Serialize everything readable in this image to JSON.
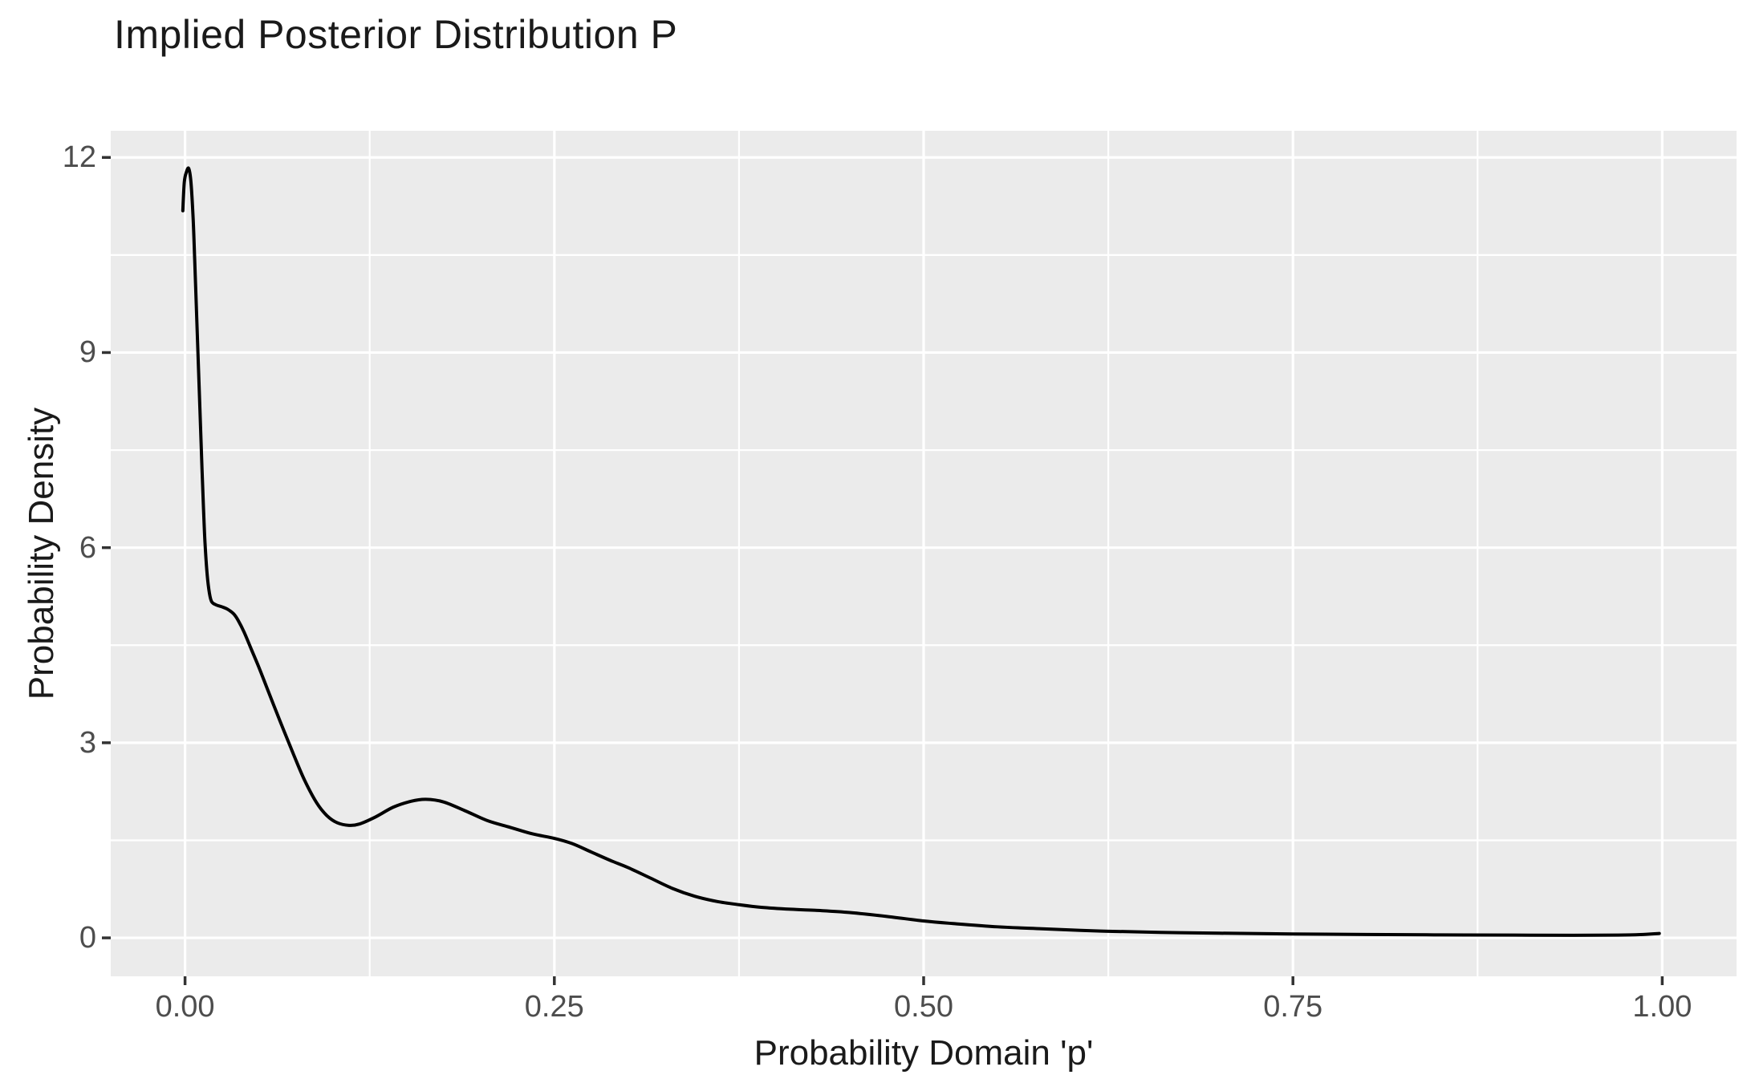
{
  "page": {
    "background": "#FFFFFF"
  },
  "chart_data": {
    "type": "line",
    "subtype": "kernel-density-curve",
    "title": "Implied Posterior Distribution P",
    "xlabel": "Probability Domain 'p'",
    "ylabel": "Probability Density",
    "legend_position": "none",
    "grid": {
      "major": true,
      "minor": true
    },
    "x_range": [
      -0.0503,
      1.0503
    ],
    "y_range": [
      -0.591,
      12.41
    ],
    "x_ticks": {
      "values": [
        0,
        0.25,
        0.5,
        0.75,
        1.0
      ],
      "labels": [
        "0.00",
        "0.25",
        "0.50",
        "0.75",
        "1.00"
      ]
    },
    "y_ticks": {
      "values": [
        0,
        3,
        6,
        9,
        12
      ],
      "labels": [
        "0",
        "3",
        "6",
        "9",
        "12"
      ]
    },
    "x_minor": [
      0.125,
      0.375,
      0.625,
      0.875
    ],
    "y_minor": [
      1.5,
      4.5,
      7.5,
      10.5
    ],
    "style": {
      "panel_bg": "#EBEBEB",
      "grid_color": "#FFFFFF",
      "major_grid_width": 3.2,
      "minor_grid_width": 2.2,
      "line_color": "#000000",
      "line_width": 4,
      "tick_mark_color": "#333333",
      "tick_mark_length": 11,
      "tick_mark_width": 3.5,
      "tick_label_color": "#4d4d4d",
      "text_color": "#1a1a1a"
    },
    "series": [
      {
        "name": "posterior_density",
        "points": [
          [
            -0.0015,
            11.18
          ],
          [
            -0.0005,
            11.62
          ],
          [
            0.001,
            11.78
          ],
          [
            0.0025,
            11.83
          ],
          [
            0.004,
            11.62
          ],
          [
            0.0055,
            11.05
          ],
          [
            0.0065,
            10.45
          ],
          [
            0.0075,
            9.8
          ],
          [
            0.0085,
            9.15
          ],
          [
            0.0095,
            8.5
          ],
          [
            0.0105,
            7.85
          ],
          [
            0.0115,
            7.2
          ],
          [
            0.0125,
            6.6
          ],
          [
            0.0135,
            6.08
          ],
          [
            0.015,
            5.58
          ],
          [
            0.0165,
            5.3
          ],
          [
            0.018,
            5.17
          ],
          [
            0.021,
            5.12
          ],
          [
            0.025,
            5.09
          ],
          [
            0.029,
            5.05
          ],
          [
            0.033,
            4.98
          ],
          [
            0.036,
            4.88
          ],
          [
            0.04,
            4.7
          ],
          [
            0.045,
            4.43
          ],
          [
            0.05,
            4.16
          ],
          [
            0.055,
            3.87
          ],
          [
            0.06,
            3.58
          ],
          [
            0.067,
            3.18
          ],
          [
            0.074,
            2.79
          ],
          [
            0.081,
            2.42
          ],
          [
            0.089,
            2.08
          ],
          [
            0.096,
            1.88
          ],
          [
            0.103,
            1.77
          ],
          [
            0.111,
            1.73
          ],
          [
            0.118,
            1.75
          ],
          [
            0.129,
            1.86
          ],
          [
            0.141,
            2.01
          ],
          [
            0.153,
            2.1
          ],
          [
            0.163,
            2.13
          ],
          [
            0.175,
            2.09
          ],
          [
            0.19,
            1.95
          ],
          [
            0.205,
            1.8
          ],
          [
            0.22,
            1.7
          ],
          [
            0.235,
            1.6
          ],
          [
            0.25,
            1.53
          ],
          [
            0.262,
            1.45
          ],
          [
            0.275,
            1.32
          ],
          [
            0.288,
            1.19
          ],
          [
            0.3,
            1.08
          ],
          [
            0.315,
            0.92
          ],
          [
            0.33,
            0.76
          ],
          [
            0.345,
            0.64
          ],
          [
            0.36,
            0.56
          ],
          [
            0.375,
            0.51
          ],
          [
            0.39,
            0.47
          ],
          [
            0.41,
            0.44
          ],
          [
            0.43,
            0.42
          ],
          [
            0.45,
            0.39
          ],
          [
            0.475,
            0.33
          ],
          [
            0.5,
            0.26
          ],
          [
            0.52,
            0.22
          ],
          [
            0.55,
            0.17
          ],
          [
            0.58,
            0.14
          ],
          [
            0.62,
            0.105
          ],
          [
            0.66,
            0.085
          ],
          [
            0.7,
            0.072
          ],
          [
            0.75,
            0.06
          ],
          [
            0.8,
            0.052
          ],
          [
            0.85,
            0.046
          ],
          [
            0.9,
            0.042
          ],
          [
            0.94,
            0.04
          ],
          [
            0.97,
            0.042
          ],
          [
            0.985,
            0.05
          ],
          [
            0.998,
            0.068
          ]
        ]
      }
    ]
  }
}
